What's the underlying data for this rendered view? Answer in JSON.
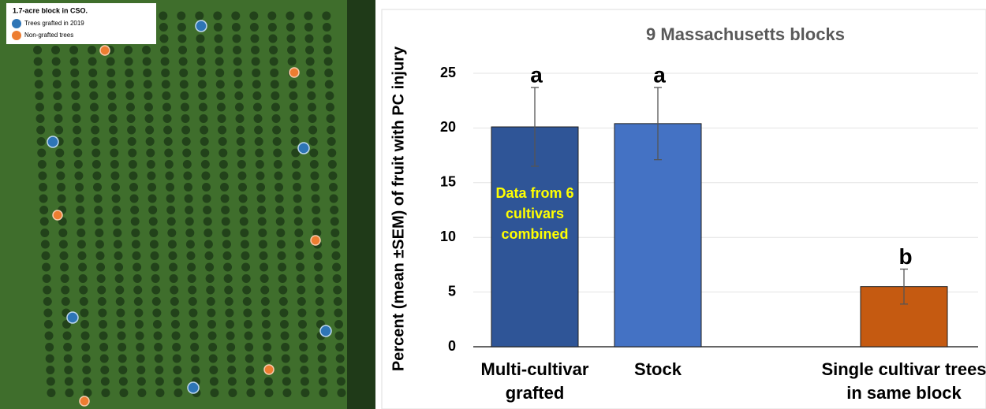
{
  "map_legend": {
    "title": "1.7-acre block in CSO.",
    "items": [
      "Trees grafted in 2019",
      "Non-grafted trees"
    ]
  },
  "chart_data": {
    "type": "bar",
    "title": "9 Massachusetts blocks",
    "y_label": "Percent (mean ±SEM) of fruit with PC injury",
    "categories": [
      "Multi-cultivar grafted",
      "Stock",
      null,
      "Single cultivar trees in same block"
    ],
    "values": [
      20.1,
      20.4,
      null,
      5.5
    ],
    "errors": [
      3.6,
      3.3,
      null,
      1.6
    ],
    "letters": [
      "a",
      "a",
      null,
      "b"
    ],
    "colors": [
      "#2f5597",
      "#4472c4",
      null,
      "#c55a11"
    ],
    "annotation": "Data from 6 cultivars combined",
    "ylim": [
      0,
      25
    ],
    "yticks": [
      0,
      5,
      10,
      15,
      20,
      25
    ],
    "grid": true
  }
}
